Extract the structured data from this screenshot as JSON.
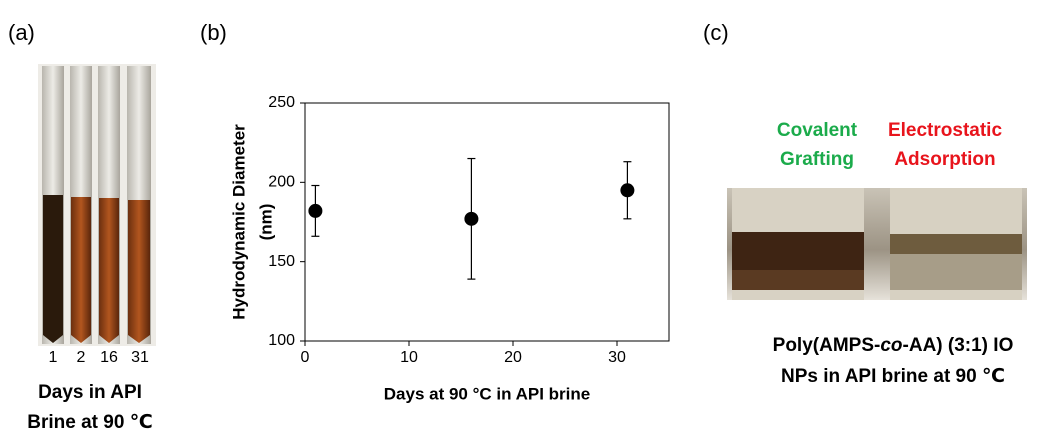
{
  "panels": {
    "a": {
      "label": "(a)",
      "tube_labels": [
        "1",
        "2",
        "16",
        "31"
      ],
      "caption": [
        "Days in API",
        "Brine at 90 ℃"
      ]
    },
    "b": {
      "label": "(b)"
    },
    "c": {
      "label": "(c)",
      "left_title": [
        "Covalent",
        "Grafting"
      ],
      "right_title": [
        "Electrostatic",
        "Adsorption"
      ],
      "caption_line1": [
        "Poly(AMPS-",
        "co",
        "-AA) (3:1) IO"
      ],
      "caption_line2": "NPs in API brine at 90 ℃"
    }
  },
  "chart_data": {
    "type": "scatter",
    "x": [
      1,
      16,
      31
    ],
    "values": [
      182,
      177,
      195
    ],
    "errors": [
      16,
      38,
      18
    ],
    "color": "#000000",
    "xlim": [
      0,
      35
    ],
    "xticks": [
      0,
      10,
      20,
      30
    ],
    "ylim": [
      100,
      250
    ],
    "yticks": [
      100,
      150,
      200,
      250
    ],
    "xlabel": "Days at 90 °C in API brine",
    "ylabel": [
      "Hydrodynamic Diameter",
      "(nm)"
    ]
  }
}
